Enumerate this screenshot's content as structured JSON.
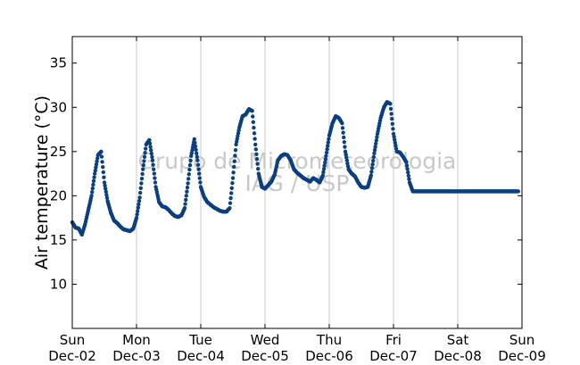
{
  "chart_data": {
    "type": "scatter",
    "title": "",
    "xlabel": "",
    "ylabel": "Air temperature (°C)",
    "watermark": [
      "Grupo de Micrometeorologia",
      "IAG / USP"
    ],
    "xlim": [
      0,
      7
    ],
    "ylim": [
      5,
      38
    ],
    "x_unit": "days since Sun Dec-02",
    "yticks": [
      10,
      15,
      20,
      25,
      30,
      35
    ],
    "xtick_labels": [
      {
        "day": "Sun",
        "date": "Dec-02"
      },
      {
        "day": "Mon",
        "date": "Dec-03"
      },
      {
        "day": "Tue",
        "date": "Dec-04"
      },
      {
        "day": "Wed",
        "date": "Dec-05"
      },
      {
        "day": "Thu",
        "date": "Dec-06"
      },
      {
        "day": "Fri",
        "date": "Dec-07"
      },
      {
        "day": "Sat",
        "date": "Dec-08"
      },
      {
        "day": "Sun",
        "date": "Dec-09"
      }
    ],
    "grid": "vertical",
    "marker_color": "#0b3f7f",
    "series": [
      {
        "name": "",
        "x": [
          0.0,
          0.05,
          0.1,
          0.15,
          0.2,
          0.25,
          0.3,
          0.35,
          0.4,
          0.45,
          0.5,
          0.55,
          0.6,
          0.65,
          0.7,
          0.75,
          0.8,
          0.85,
          0.9,
          0.95,
          1.0,
          1.05,
          1.1,
          1.15,
          1.2,
          1.25,
          1.3,
          1.35,
          1.4,
          1.45,
          1.5,
          1.55,
          1.6,
          1.65,
          1.7,
          1.75,
          1.8,
          1.85,
          1.9,
          1.95,
          2.0,
          2.05,
          2.1,
          2.15,
          2.2,
          2.25,
          2.3,
          2.35,
          2.4,
          2.45,
          2.5,
          2.55,
          2.6,
          2.65,
          2.7,
          2.75,
          2.8,
          2.85,
          2.9,
          2.95,
          3.0,
          3.05,
          3.1,
          3.15,
          3.2,
          3.25,
          3.3,
          3.35,
          3.4,
          3.45,
          3.5,
          3.55,
          3.6,
          3.65,
          3.7,
          3.75,
          3.8,
          3.85,
          3.9,
          3.95,
          4.0,
          4.05,
          4.1,
          4.15,
          4.2,
          4.25,
          4.3,
          4.35,
          4.4,
          4.45,
          4.5,
          4.55,
          4.6,
          4.65,
          4.7,
          4.75,
          4.8,
          4.85,
          4.9,
          4.95,
          5.0,
          5.05,
          5.1,
          5.15,
          5.2,
          5.25,
          5.3,
          5.35,
          5.4,
          5.45,
          5.5,
          5.55,
          5.6,
          5.65,
          5.7,
          5.75,
          5.8,
          5.85,
          5.9,
          5.95,
          6.0,
          6.05,
          6.1,
          6.15,
          6.2,
          6.25,
          6.3,
          6.35,
          6.4,
          6.45,
          6.5,
          6.55,
          6.6,
          6.65,
          6.7,
          6.75,
          6.8,
          6.85,
          6.9,
          6.95,
          7.0
        ],
        "y": [
          17.0,
          16.4,
          16.3,
          15.6,
          16.8,
          18.4,
          20.0,
          22.5,
          24.6,
          25.0,
          21.5,
          19.4,
          18.1,
          17.2,
          16.9,
          16.5,
          16.2,
          16.1,
          16.0,
          16.3,
          17.5,
          19.8,
          23.0,
          25.8,
          26.3,
          24.0,
          21.0,
          19.3,
          18.8,
          18.7,
          18.4,
          18.0,
          17.7,
          17.6,
          17.8,
          18.6,
          21.4,
          24.5,
          26.4,
          24.0,
          21.0,
          19.9,
          19.3,
          19.0,
          18.7,
          18.5,
          18.3,
          18.2,
          18.2,
          18.6,
          22.0,
          25.8,
          27.7,
          29.0,
          29.2,
          29.8,
          29.6,
          25.8,
          22.5,
          21.0,
          20.8,
          21.2,
          21.6,
          22.4,
          24.0,
          24.5,
          24.7,
          24.6,
          24.0,
          23.0,
          22.6,
          22.3,
          22.0,
          21.8,
          21.6,
          22.0,
          21.8,
          21.5,
          22.3,
          24.5,
          26.8,
          28.2,
          29.0,
          28.8,
          28.2,
          25.0,
          23.0,
          22.5,
          22.2,
          21.5,
          21.0,
          20.9,
          21.0,
          22.3,
          24.8,
          27.0,
          28.8,
          30.0,
          30.6,
          30.4,
          27.0,
          25.0,
          24.9,
          24.4,
          23.8,
          21.5,
          20.5,
          20.5,
          20.5,
          20.5,
          20.5,
          20.5,
          20.5,
          20.5,
          20.5,
          20.5,
          20.5,
          20.5,
          20.5,
          20.5,
          20.5,
          20.5,
          20.5,
          20.5,
          20.5,
          20.5,
          20.5,
          20.5,
          20.5,
          20.5,
          20.5,
          20.5,
          20.5,
          20.5,
          20.5,
          20.5,
          20.5,
          20.5,
          20.5,
          20.5,
          20.5
        ]
      }
    ]
  }
}
